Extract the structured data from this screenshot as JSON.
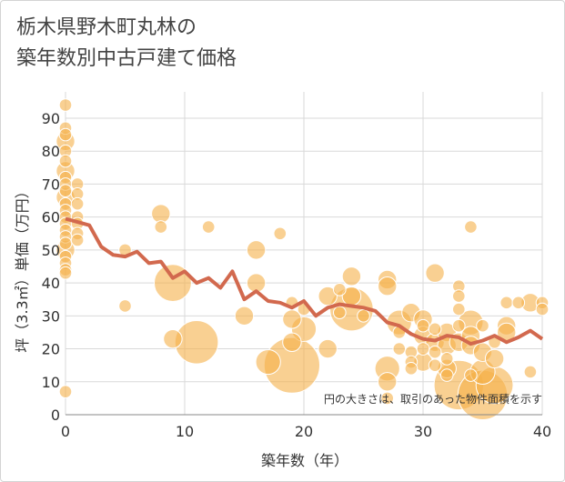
{
  "title_lines": [
    "栃木県野木町丸林の",
    "築年数別中古戸建て価格"
  ],
  "chart_data": {
    "type": "scatter",
    "xlabel": "築年数（年）",
    "ylabel": "坪（3.3㎡）単価（万円）",
    "xlim": [
      0,
      40
    ],
    "ylim": [
      0,
      98
    ],
    "xticks": [
      0,
      10,
      20,
      30,
      40
    ],
    "yticks": [
      0,
      10,
      20,
      30,
      40,
      50,
      60,
      70,
      80,
      90
    ],
    "grid": true,
    "note": "円の大きさは、取引のあった物件面積を示す",
    "colors": {
      "bubble_fill": "#f5b04a",
      "bubble_stroke": "#ffffff",
      "line": "#d2694e",
      "grid": "#d9d9d9",
      "plot_bg": "#ffffff"
    },
    "series": [
      {
        "type": "bubble",
        "points": [
          {
            "x": 0,
            "y": 94,
            "s": 2
          },
          {
            "x": 0,
            "y": 87,
            "s": 2
          },
          {
            "x": 0,
            "y": 85,
            "s": 2
          },
          {
            "x": 0,
            "y": 83,
            "s": 3
          },
          {
            "x": 0,
            "y": 80,
            "s": 2
          },
          {
            "x": 0,
            "y": 77,
            "s": 2
          },
          {
            "x": 0,
            "y": 74,
            "s": 3
          },
          {
            "x": 0,
            "y": 72,
            "s": 2
          },
          {
            "x": 0,
            "y": 70,
            "s": 2
          },
          {
            "x": 0,
            "y": 68,
            "s": 2
          },
          {
            "x": 0,
            "y": 66,
            "s": 3
          },
          {
            "x": 0,
            "y": 64,
            "s": 2
          },
          {
            "x": 0,
            "y": 62,
            "s": 2
          },
          {
            "x": 0,
            "y": 60,
            "s": 2
          },
          {
            "x": 0,
            "y": 58,
            "s": 2
          },
          {
            "x": 0,
            "y": 56,
            "s": 2
          },
          {
            "x": 0,
            "y": 54,
            "s": 2
          },
          {
            "x": 0,
            "y": 52,
            "s": 2
          },
          {
            "x": 0,
            "y": 50,
            "s": 3
          },
          {
            "x": 0,
            "y": 48,
            "s": 2
          },
          {
            "x": 0,
            "y": 46,
            "s": 2
          },
          {
            "x": 0,
            "y": 44,
            "s": 2
          },
          {
            "x": 0,
            "y": 43,
            "s": 2
          },
          {
            "x": 0,
            "y": 7,
            "s": 2
          },
          {
            "x": 1,
            "y": 70,
            "s": 2
          },
          {
            "x": 1,
            "y": 67,
            "s": 2
          },
          {
            "x": 1,
            "y": 64,
            "s": 2
          },
          {
            "x": 1,
            "y": 60,
            "s": 2
          },
          {
            "x": 1,
            "y": 58,
            "s": 2
          },
          {
            "x": 1,
            "y": 55,
            "s": 2
          },
          {
            "x": 1,
            "y": 53,
            "s": 2
          },
          {
            "x": 5,
            "y": 50,
            "s": 2
          },
          {
            "x": 5,
            "y": 33,
            "s": 2
          },
          {
            "x": 8,
            "y": 61,
            "s": 3
          },
          {
            "x": 8,
            "y": 57,
            "s": 2
          },
          {
            "x": 9,
            "y": 40,
            "s": 6
          },
          {
            "x": 9,
            "y": 23,
            "s": 3
          },
          {
            "x": 11,
            "y": 22,
            "s": 7
          },
          {
            "x": 12,
            "y": 57,
            "s": 2
          },
          {
            "x": 15,
            "y": 30,
            "s": 3
          },
          {
            "x": 16,
            "y": 50,
            "s": 3
          },
          {
            "x": 16,
            "y": 40,
            "s": 3
          },
          {
            "x": 17,
            "y": 16,
            "s": 4
          },
          {
            "x": 18,
            "y": 55,
            "s": 2
          },
          {
            "x": 19,
            "y": 15,
            "s": 9
          },
          {
            "x": 19,
            "y": 29,
            "s": 3
          },
          {
            "x": 19,
            "y": 22,
            "s": 3
          },
          {
            "x": 19,
            "y": 34,
            "s": 2
          },
          {
            "x": 20,
            "y": 26,
            "s": 4
          },
          {
            "x": 20,
            "y": 32,
            "s": 2
          },
          {
            "x": 22,
            "y": 36,
            "s": 3
          },
          {
            "x": 22,
            "y": 20,
            "s": 3
          },
          {
            "x": 23,
            "y": 38,
            "s": 2
          },
          {
            "x": 23,
            "y": 31,
            "s": 2
          },
          {
            "x": 24,
            "y": 42,
            "s": 3
          },
          {
            "x": 24,
            "y": 36,
            "s": 3
          },
          {
            "x": 24,
            "y": 32,
            "s": 7
          },
          {
            "x": 25,
            "y": 30,
            "s": 2
          },
          {
            "x": 27,
            "y": 41,
            "s": 3
          },
          {
            "x": 27,
            "y": 39,
            "s": 3
          },
          {
            "x": 27,
            "y": 14,
            "s": 4
          },
          {
            "x": 27,
            "y": 10,
            "s": 3
          },
          {
            "x": 27,
            "y": 5,
            "s": 2
          },
          {
            "x": 28,
            "y": 28,
            "s": 4
          },
          {
            "x": 28,
            "y": 25,
            "s": 2
          },
          {
            "x": 28,
            "y": 20,
            "s": 2
          },
          {
            "x": 29,
            "y": 31,
            "s": 3
          },
          {
            "x": 29,
            "y": 19,
            "s": 2
          },
          {
            "x": 29,
            "y": 16,
            "s": 2
          },
          {
            "x": 29,
            "y": 14,
            "s": 2
          },
          {
            "x": 30,
            "y": 29,
            "s": 3
          },
          {
            "x": 30,
            "y": 27,
            "s": 2
          },
          {
            "x": 30,
            "y": 24,
            "s": 3
          },
          {
            "x": 30,
            "y": 20,
            "s": 2
          },
          {
            "x": 30,
            "y": 16,
            "s": 3
          },
          {
            "x": 31,
            "y": 43,
            "s": 3
          },
          {
            "x": 31,
            "y": 26,
            "s": 2
          },
          {
            "x": 31,
            "y": 22,
            "s": 3
          },
          {
            "x": 31,
            "y": 19,
            "s": 2
          },
          {
            "x": 31,
            "y": 15,
            "s": 2
          },
          {
            "x": 32,
            "y": 25,
            "s": 3
          },
          {
            "x": 32,
            "y": 21,
            "s": 3
          },
          {
            "x": 32,
            "y": 17,
            "s": 2
          },
          {
            "x": 32,
            "y": 14,
            "s": 3
          },
          {
            "x": 32,
            "y": 12,
            "s": 2
          },
          {
            "x": 33,
            "y": 39,
            "s": 2
          },
          {
            "x": 33,
            "y": 36,
            "s": 2
          },
          {
            "x": 33,
            "y": 32,
            "s": 2
          },
          {
            "x": 33,
            "y": 27,
            "s": 2
          },
          {
            "x": 33,
            "y": 22,
            "s": 3
          },
          {
            "x": 33,
            "y": 9,
            "s": 8
          },
          {
            "x": 34,
            "y": 57,
            "s": 2
          },
          {
            "x": 34,
            "y": 28,
            "s": 4
          },
          {
            "x": 34,
            "y": 24,
            "s": 3
          },
          {
            "x": 34,
            "y": 21,
            "s": 3
          },
          {
            "x": 34,
            "y": 12,
            "s": 2
          },
          {
            "x": 35,
            "y": 27,
            "s": 2
          },
          {
            "x": 35,
            "y": 19,
            "s": 3
          },
          {
            "x": 35,
            "y": 6,
            "s": 8
          },
          {
            "x": 35,
            "y": 13,
            "s": 4
          },
          {
            "x": 36,
            "y": 17,
            "s": 3
          },
          {
            "x": 36,
            "y": 22,
            "s": 2
          },
          {
            "x": 36,
            "y": 9,
            "s": 6
          },
          {
            "x": 37,
            "y": 34,
            "s": 2
          },
          {
            "x": 37,
            "y": 27,
            "s": 3
          },
          {
            "x": 37,
            "y": 25,
            "s": 3
          },
          {
            "x": 38,
            "y": 34,
            "s": 2
          },
          {
            "x": 39,
            "y": 34,
            "s": 3
          },
          {
            "x": 39,
            "y": 13,
            "s": 2
          },
          {
            "x": 40,
            "y": 34,
            "s": 2
          },
          {
            "x": 40,
            "y": 32,
            "s": 2
          }
        ]
      },
      {
        "type": "line",
        "points": [
          [
            0,
            59.5
          ],
          [
            1,
            58.5
          ],
          [
            2,
            57.5
          ],
          [
            3,
            51
          ],
          [
            4,
            48.5
          ],
          [
            5,
            48
          ],
          [
            6,
            49.5
          ],
          [
            7,
            46
          ],
          [
            8,
            46.5
          ],
          [
            9,
            41.5
          ],
          [
            10,
            43.5
          ],
          [
            11,
            40
          ],
          [
            12,
            41.5
          ],
          [
            13,
            38.5
          ],
          [
            14,
            43.5
          ],
          [
            15,
            35
          ],
          [
            16,
            37.5
          ],
          [
            17,
            34.5
          ],
          [
            18,
            34
          ],
          [
            19,
            32.5
          ],
          [
            20,
            34.5
          ],
          [
            21,
            30
          ],
          [
            22,
            32.5
          ],
          [
            23,
            33.5
          ],
          [
            24,
            33
          ],
          [
            25,
            32.5
          ],
          [
            26,
            31.5
          ],
          [
            27,
            28
          ],
          [
            28,
            27
          ],
          [
            29,
            24.5
          ],
          [
            30,
            23
          ],
          [
            31,
            22.5
          ],
          [
            32,
            24
          ],
          [
            33,
            23.5
          ],
          [
            34,
            21.5
          ],
          [
            35,
            22.5
          ],
          [
            36,
            24
          ],
          [
            37,
            22
          ],
          [
            38,
            23.5
          ],
          [
            39,
            25.5
          ],
          [
            40,
            23
          ]
        ]
      }
    ]
  }
}
